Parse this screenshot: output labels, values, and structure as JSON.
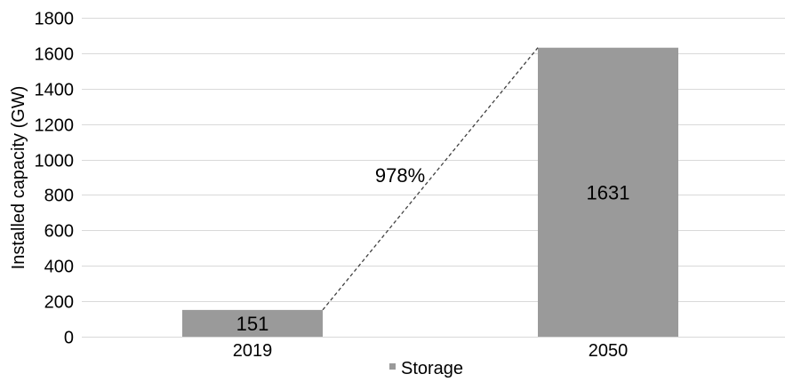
{
  "chart_data": {
    "type": "bar",
    "categories": [
      "2019",
      "2050"
    ],
    "series": [
      {
        "name": "Storage",
        "values": [
          151,
          1631
        ]
      }
    ],
    "data_labels": [
      "151",
      "1631"
    ],
    "ylabel": "Installed capacity (GW)",
    "xlabel": "",
    "ylim": [
      0,
      1800
    ],
    "yticks": [
      0,
      200,
      400,
      600,
      800,
      1000,
      1200,
      1400,
      1600,
      1800
    ],
    "grid": true,
    "legend_position": "bottom",
    "growth_annotation": "978%",
    "colors": {
      "bar": "#9a9a9a",
      "grid": "#d9d9d9",
      "connector": "#404040"
    }
  }
}
